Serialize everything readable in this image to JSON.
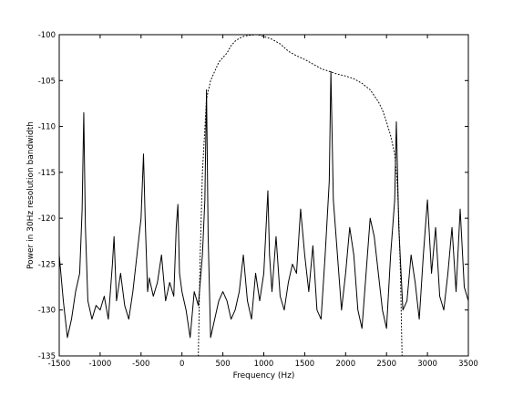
{
  "chart_data": {
    "type": "line",
    "title": "",
    "xlabel": "Frequency (Hz)",
    "ylabel": "Power in 30Hz resolution bandwidth",
    "xlim": [
      -1500,
      3500
    ],
    "ylim": [
      -135,
      -100
    ],
    "xticks": [
      -1500,
      -1000,
      -500,
      0,
      500,
      1000,
      1500,
      2000,
      2500,
      3000,
      3500
    ],
    "xtick_labels": [
      "-1500",
      "-1000",
      "-500",
      "0",
      "500",
      "1000",
      "1500",
      "2000",
      "2500",
      "3000",
      "3500"
    ],
    "yticks": [
      -135,
      -130,
      -125,
      -120,
      -115,
      -110,
      -105,
      -100
    ],
    "ytick_labels": [
      "-135",
      "-130",
      "-125",
      "-120",
      "-115",
      "-110",
      "-105",
      "-100"
    ],
    "grid": false,
    "legend": false,
    "series": [
      {
        "style": "solid",
        "color": "#000000",
        "x": [
          -1500,
          -1450,
          -1400,
          -1350,
          -1300,
          -1250,
          -1220,
          -1200,
          -1180,
          -1150,
          -1100,
          -1050,
          -1000,
          -950,
          -900,
          -850,
          -830,
          -800,
          -750,
          -700,
          -650,
          -600,
          -550,
          -500,
          -470,
          -450,
          -420,
          -400,
          -350,
          -300,
          -250,
          -200,
          -150,
          -100,
          -70,
          -50,
          -30,
          0,
          50,
          100,
          150,
          200,
          250,
          280,
          300,
          320,
          350,
          400,
          450,
          500,
          550,
          600,
          650,
          700,
          750,
          800,
          850,
          900,
          950,
          1000,
          1050,
          1070,
          1100,
          1150,
          1200,
          1250,
          1300,
          1350,
          1400,
          1450,
          1500,
          1550,
          1600,
          1650,
          1700,
          1750,
          1800,
          1820,
          1850,
          1900,
          1950,
          2000,
          2050,
          2100,
          2150,
          2200,
          2250,
          2300,
          2350,
          2400,
          2450,
          2500,
          2550,
          2600,
          2620,
          2650,
          2700,
          2750,
          2800,
          2850,
          2900,
          2950,
          3000,
          3050,
          3100,
          3150,
          3200,
          3250,
          3300,
          3350,
          3400,
          3450,
          3500
        ],
        "y": [
          -124,
          -129,
          -133,
          -131,
          -128,
          -126,
          -119,
          -108.5,
          -121,
          -129,
          -131,
          -129.5,
          -130,
          -128.5,
          -131,
          -125,
          -122,
          -129,
          -126,
          -129.5,
          -131,
          -128,
          -124,
          -120,
          -113,
          -120,
          -128,
          -126.5,
          -128.5,
          -127,
          -124,
          -129,
          -127,
          -128.5,
          -121,
          -118.5,
          -126,
          -128,
          -130,
          -133,
          -128,
          -129.5,
          -124,
          -118,
          -106,
          -122,
          -133,
          -131,
          -129,
          -128,
          -129,
          -131,
          -130,
          -128,
          -124,
          -129,
          -131,
          -126,
          -129,
          -126,
          -117,
          -124,
          -128,
          -122,
          -128.5,
          -130,
          -127,
          -125,
          -126,
          -119,
          -124,
          -128,
          -123,
          -130,
          -131,
          -124,
          -116,
          -104,
          -118,
          -124,
          -130,
          -126,
          -121,
          -124,
          -130,
          -132,
          -126,
          -120,
          -122,
          -126,
          -130,
          -132,
          -124,
          -118,
          -109.5,
          -121,
          -130,
          -129,
          -124,
          -127,
          -131,
          -124,
          -118,
          -126,
          -121,
          -128.5,
          -130,
          -126,
          -121,
          -128,
          -119,
          -127.5,
          -129
        ]
      },
      {
        "style": "dotted",
        "color": "#000000",
        "x": [
          200,
          220,
          250,
          300,
          350,
          400,
          450,
          500,
          550,
          600,
          650,
          700,
          750,
          800,
          850,
          900,
          950,
          1000,
          1100,
          1200,
          1300,
          1400,
          1500,
          1600,
          1700,
          1800,
          1900,
          2000,
          2100,
          2200,
          2300,
          2400,
          2450,
          2500,
          2550,
          2600,
          2630,
          2650,
          2670,
          2690
        ],
        "y": [
          -135,
          -125,
          -115,
          -107,
          -105,
          -104,
          -103,
          -102.5,
          -102,
          -101.2,
          -100.7,
          -100.4,
          -100.2,
          -100.1,
          -100.05,
          -100,
          -100.05,
          -100.2,
          -100.5,
          -101,
          -101.8,
          -102.3,
          -102.7,
          -103.2,
          -103.7,
          -104,
          -104.3,
          -104.5,
          -104.8,
          -105.3,
          -106,
          -107.3,
          -108.2,
          -109.5,
          -111,
          -113,
          -116,
          -120,
          -126,
          -135
        ]
      }
    ]
  }
}
